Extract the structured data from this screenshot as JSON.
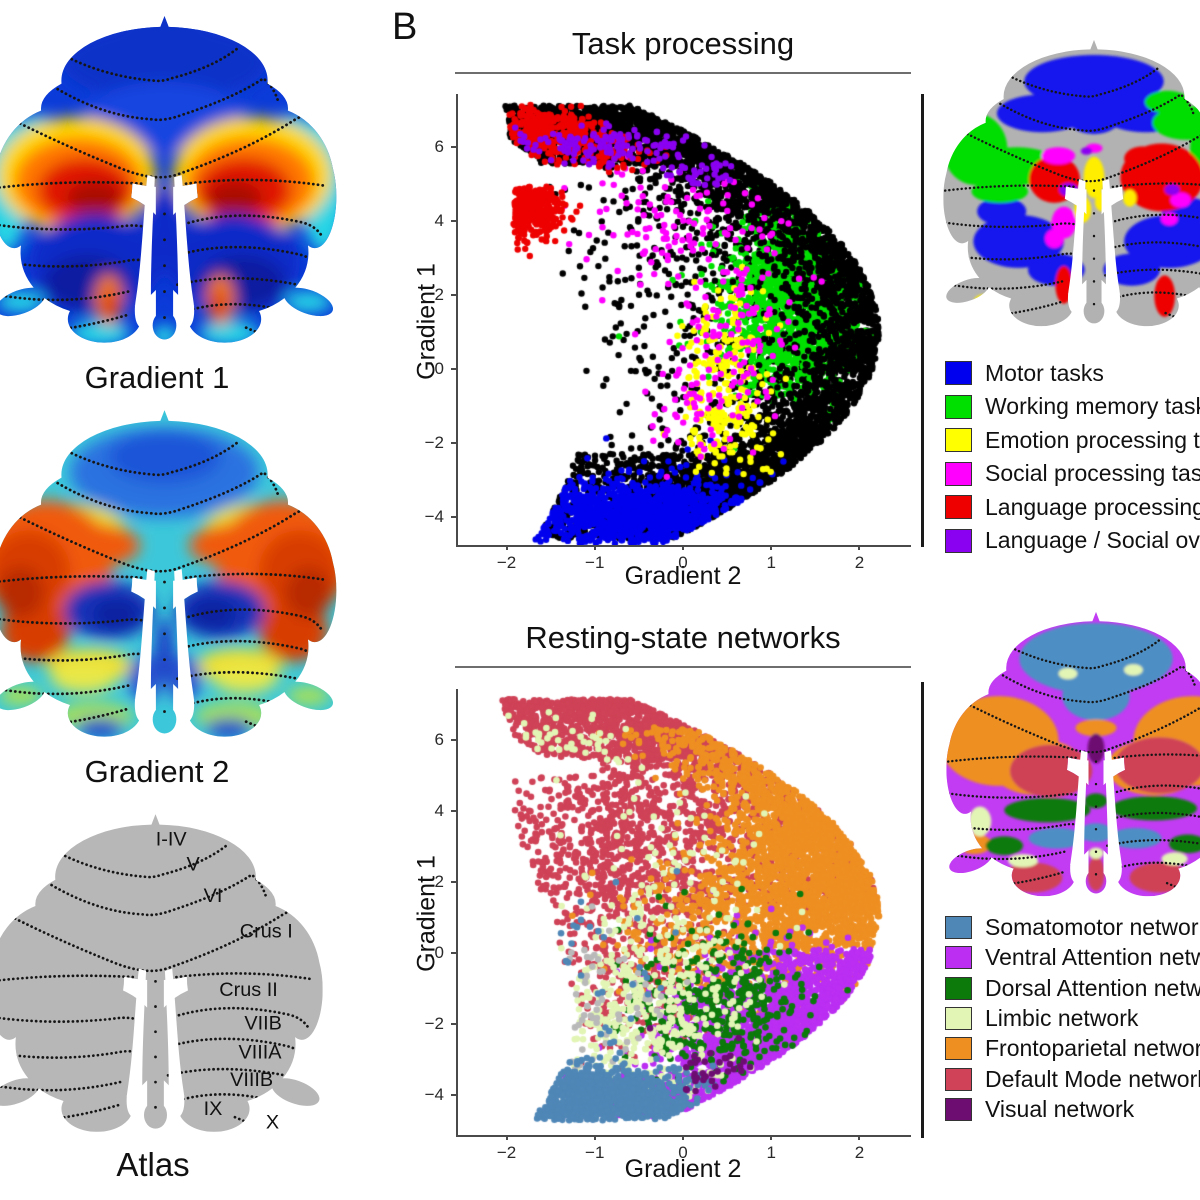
{
  "panel_label": "B",
  "flatmaps": {
    "gradient1": {
      "caption": "Gradient 1"
    },
    "gradient2": {
      "caption": "Gradient 2"
    },
    "atlas": {
      "caption": "Atlas",
      "labels": [
        "I-IV",
        "V",
        "VI",
        "Crus I",
        "Crus II",
        "VIIB",
        "VIIIA",
        "VIIIB",
        "IX",
        "X"
      ]
    }
  },
  "chart_data": [
    {
      "type": "scatter",
      "title": "Task processing",
      "xlabel": "Gradient 2",
      "ylabel": "Gradient 1",
      "xlim": [
        -2.55,
        2.55
      ],
      "ylim": [
        -4.76,
        7.41
      ],
      "xticks": [
        -2,
        -1,
        0,
        1,
        2
      ],
      "yticks": [
        6,
        4,
        2,
        0,
        -2,
        -4
      ],
      "legend_position": "right",
      "grid": false,
      "legend": [
        {
          "label": "Motor tasks",
          "color": "#0000ee"
        },
        {
          "label": "Working memory task",
          "color": "#00e000"
        },
        {
          "label": "Emotion processing task",
          "color": "#ffff00"
        },
        {
          "label": "Social processing task",
          "color": "#ff00ff"
        },
        {
          "label": "Language processing task",
          "color": "#ee0000"
        },
        {
          "label": "Language / Social overlap",
          "color": "#8a00f0"
        }
      ],
      "boundary": {
        "vertex": [
          2.25,
          1.0
        ],
        "a": 0.075,
        "xleft": [
          [
            7.15,
            -2.05
          ],
          [
            6.2,
            -1.95
          ],
          [
            5.55,
            -1.6
          ],
          [
            5.45,
            -0.95
          ],
          [
            5.05,
            -1.0
          ],
          [
            4.9,
            -1.9
          ],
          [
            3.5,
            -1.95
          ],
          [
            2.0,
            -1.65
          ],
          [
            0.5,
            -1.45
          ],
          [
            -1.5,
            -1.18
          ],
          [
            -3.0,
            -1.3
          ],
          [
            -4.2,
            -1.55
          ],
          [
            -4.75,
            -1.72
          ]
        ]
      },
      "clusters": [
        {
          "color": "#000000",
          "kind": "fill",
          "n": 1700,
          "y": [
            -4.6,
            7.1
          ],
          "bias": 0.42
        },
        {
          "color": "#000000",
          "kind": "fill",
          "n": 750,
          "y": [
            5.55,
            7.12
          ],
          "bias": 1
        },
        {
          "color": "#000000",
          "kind": "fill",
          "n": 650,
          "y": [
            -4.5,
            -2.3
          ],
          "bias": 1
        },
        {
          "color": "#00e000",
          "kind": "gauss",
          "c": [
            1.35,
            2.0
          ],
          "s": [
            0.45,
            1.3
          ],
          "n": 1500,
          "rimgap": 0.12
        },
        {
          "color": "#000000",
          "kind": "rim",
          "y": [
            -4.55,
            7.05
          ],
          "dmax": 0.5,
          "n": 2600
        },
        {
          "color": "#0000ee",
          "kind": "gauss",
          "c": [
            -0.45,
            -3.95
          ],
          "s": [
            0.8,
            0.5
          ],
          "n": 1100
        },
        {
          "color": "#ffff00",
          "kind": "gauss",
          "c": [
            0.45,
            0.1
          ],
          "s": [
            0.25,
            1.0
          ],
          "n": 180
        },
        {
          "color": "#ffff00",
          "kind": "gauss",
          "c": [
            0.55,
            -1.9
          ],
          "s": [
            0.3,
            0.55
          ],
          "n": 70
        },
        {
          "color": "#ff00ff",
          "kind": "gauss",
          "c": [
            -0.15,
            4.2
          ],
          "s": [
            0.55,
            0.75
          ],
          "n": 110
        },
        {
          "color": "#ff00ff",
          "kind": "gauss",
          "c": [
            0.55,
            1.1
          ],
          "s": [
            0.4,
            1.2
          ],
          "n": 110
        },
        {
          "color": "#ff00ff",
          "kind": "gauss",
          "c": [
            0.3,
            -1.2
          ],
          "s": [
            0.3,
            0.7
          ],
          "n": 50
        },
        {
          "color": "#ee0000",
          "kind": "gauss",
          "c": [
            -1.55,
            6.5
          ],
          "s": [
            0.3,
            0.35
          ],
          "n": 280
        },
        {
          "color": "#ee0000",
          "kind": "gauss",
          "c": [
            -1.72,
            4.4
          ],
          "s": [
            0.17,
            0.5
          ],
          "n": 330
        },
        {
          "color": "#ee0000",
          "kind": "gauss",
          "c": [
            -1.0,
            5.95
          ],
          "s": [
            0.35,
            0.28
          ],
          "n": 90
        },
        {
          "color": "#8a00f0",
          "kind": "gauss",
          "c": [
            -0.85,
            6.05
          ],
          "s": [
            0.5,
            0.24
          ],
          "n": 140
        },
        {
          "color": "#8a00f0",
          "kind": "gauss",
          "c": [
            0.2,
            5.3
          ],
          "s": [
            0.22,
            0.18
          ],
          "n": 35
        }
      ]
    },
    {
      "type": "scatter",
      "title": "Resting-state networks",
      "xlabel": "Gradient 2",
      "ylabel": "Gradient 1",
      "xlim": [
        -2.55,
        2.55
      ],
      "ylim": [
        -5.13,
        7.41
      ],
      "xticks": [
        -2,
        -1,
        0,
        1,
        2
      ],
      "yticks": [
        6,
        4,
        2,
        0,
        -2,
        -4
      ],
      "legend_position": "right",
      "grid": false,
      "legend": [
        {
          "label": "Somatomotor network",
          "color": "#4f87b7"
        },
        {
          "label": "Ventral Attention network",
          "color": "#bb2ef2"
        },
        {
          "label": "Dorsal Attention network",
          "color": "#0b7a0b"
        },
        {
          "label": "Limbic network",
          "color": "#e2f5b5"
        },
        {
          "label": "Frontoparietal network",
          "color": "#ee8f22"
        },
        {
          "label": "Default Mode network",
          "color": "#cf4257"
        },
        {
          "label": "Visual network",
          "color": "#6d0d72"
        }
      ],
      "boundary": {
        "vertex": [
          2.25,
          1.0
        ],
        "a": 0.075,
        "xleft": [
          [
            7.15,
            -2.05
          ],
          [
            6.2,
            -1.95
          ],
          [
            5.55,
            -1.6
          ],
          [
            5.45,
            -0.95
          ],
          [
            5.05,
            -1.0
          ],
          [
            4.9,
            -1.9
          ],
          [
            3.5,
            -1.95
          ],
          [
            2.0,
            -1.65
          ],
          [
            0.5,
            -1.45
          ],
          [
            -1.5,
            -1.18
          ],
          [
            -3.0,
            -1.3
          ],
          [
            -4.2,
            -1.55
          ],
          [
            -4.75,
            -1.72
          ]
        ]
      },
      "clusters": [
        {
          "color": "#cf4257",
          "kind": "fill",
          "n": 1200,
          "y": [
            1.2,
            7.15
          ],
          "bias": 0.55
        },
        {
          "color": "#cf4257",
          "kind": "fill",
          "n": 700,
          "y": [
            5.5,
            7.15
          ],
          "bias": 1
        },
        {
          "color": "#cf4257",
          "kind": "gauss",
          "c": [
            -0.8,
            2.8
          ],
          "s": [
            0.75,
            1.8
          ],
          "n": 700
        },
        {
          "color": "#cf4257",
          "kind": "gauss",
          "c": [
            -0.5,
            -0.8
          ],
          "s": [
            0.6,
            1.2
          ],
          "n": 260
        },
        {
          "color": "#ee8f22",
          "kind": "gauss",
          "c": [
            1.45,
            2.3
          ],
          "s": [
            0.6,
            1.6
          ],
          "n": 1500,
          "rimgap": 0.02
        },
        {
          "color": "#ee8f22",
          "kind": "rim",
          "y": [
            0.2,
            6.3
          ],
          "dmax": 0.5,
          "n": 900
        },
        {
          "color": "#ee8f22",
          "kind": "gauss",
          "c": [
            0.35,
            0.3
          ],
          "s": [
            0.5,
            1.0
          ],
          "n": 300
        },
        {
          "color": "#bb2ef2",
          "kind": "rim",
          "y": [
            -4.4,
            0.1
          ],
          "dmax": 0.6,
          "n": 1000
        },
        {
          "color": "#bb2ef2",
          "kind": "gauss",
          "c": [
            1.0,
            -2.0
          ],
          "s": [
            0.65,
            1.0
          ],
          "n": 800
        },
        {
          "color": "#bb2ef2",
          "kind": "fill",
          "n": 300,
          "y": [
            -4.6,
            -3.4
          ],
          "bias": 0.75
        },
        {
          "color": "#0b7a0b",
          "kind": "gauss",
          "c": [
            0.45,
            -1.5
          ],
          "s": [
            0.5,
            1.0
          ],
          "n": 430
        },
        {
          "color": "#e2f5b5",
          "kind": "gauss",
          "c": [
            -0.5,
            -2.0
          ],
          "s": [
            0.55,
            1.1
          ],
          "n": 330
        },
        {
          "color": "#e2f5b5",
          "kind": "gauss",
          "c": [
            -0.2,
            0.6
          ],
          "s": [
            0.6,
            1.6
          ],
          "n": 160
        },
        {
          "color": "#e2f5b5",
          "kind": "gauss",
          "c": [
            -1.3,
            5.9
          ],
          "s": [
            0.35,
            0.35
          ],
          "n": 45
        },
        {
          "color": "#b9b9b9",
          "kind": "gauss",
          "c": [
            -1.05,
            -1.6
          ],
          "s": [
            0.45,
            1.2
          ],
          "n": 65
        },
        {
          "color": "#4f87b7",
          "kind": "gauss",
          "c": [
            -1.0,
            -0.3
          ],
          "s": [
            0.4,
            1.2
          ],
          "n": 30
        },
        {
          "color": "#4f87b7",
          "kind": "gauss",
          "c": [
            -0.95,
            -4.1
          ],
          "s": [
            0.55,
            0.42
          ],
          "n": 950
        },
        {
          "color": "#6d0d72",
          "kind": "gauss",
          "c": [
            0.35,
            -3.4
          ],
          "s": [
            0.3,
            0.35
          ],
          "n": 35
        }
      ]
    }
  ]
}
